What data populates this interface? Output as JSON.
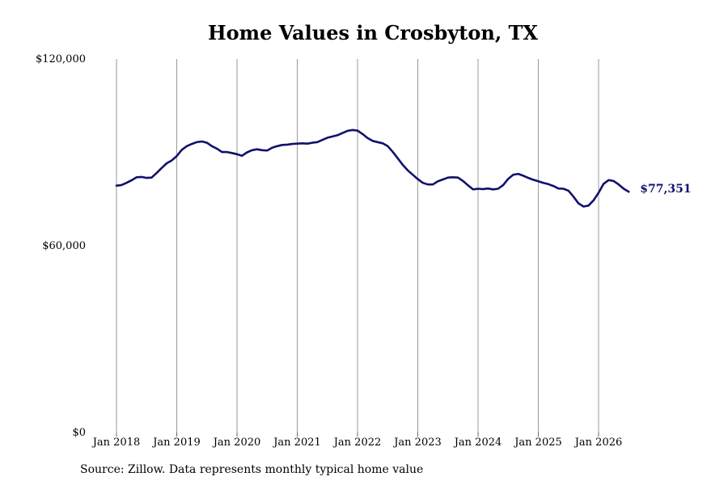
{
  "chart_data": {
    "type": "line",
    "title": "Home Values in Crosbyton, TX",
    "xlabel": "",
    "ylabel": "",
    "source": "Source: Zillow. Data represents monthly typical home value",
    "ylim": [
      0,
      120000
    ],
    "yticks": [
      {
        "value": 0,
        "label": "$0"
      },
      {
        "value": 60000,
        "label": "$60,000"
      },
      {
        "value": 120000,
        "label": "$120,000"
      }
    ],
    "xticks": [
      {
        "year": 2018,
        "label": "Jan 2018"
      },
      {
        "year": 2019,
        "label": "Jan 2019"
      },
      {
        "year": 2020,
        "label": "Jan 2020"
      },
      {
        "year": 2021,
        "label": "Jan 2021"
      },
      {
        "year": 2022,
        "label": "Jan 2022"
      },
      {
        "year": 2023,
        "label": "Jan 2023"
      },
      {
        "year": 2024,
        "label": "Jan 2024"
      },
      {
        "year": 2025,
        "label": "Jan 2025"
      },
      {
        "year": 2026,
        "label": "Jan 2026"
      }
    ],
    "grid": "vertical",
    "line_color": "#11116b",
    "end_label": "$77,351",
    "series": [
      {
        "x": [
          2018.0,
          2018.083,
          2018.167,
          2018.25,
          2018.333,
          2018.417,
          2018.5,
          2018.583,
          2018.667,
          2018.75,
          2018.833,
          2018.917,
          2019.0,
          2019.083,
          2019.167,
          2019.25,
          2019.333,
          2019.417,
          2019.5,
          2019.583,
          2019.667,
          2019.75,
          2019.833,
          2019.917,
          2020.0,
          2020.083,
          2020.167,
          2020.25,
          2020.333,
          2020.417,
          2020.5,
          2020.583,
          2020.667,
          2020.75,
          2020.833,
          2020.917,
          2021.0,
          2021.083,
          2021.167,
          2021.25,
          2021.333,
          2021.417,
          2021.5,
          2021.583,
          2021.667,
          2021.75,
          2021.833,
          2021.917,
          2022.0,
          2022.083,
          2022.167,
          2022.25,
          2022.333,
          2022.417,
          2022.5,
          2022.583,
          2022.667,
          2022.75,
          2022.833,
          2022.917,
          2023.0,
          2023.083,
          2023.167,
          2023.25,
          2023.333,
          2023.417,
          2023.5,
          2023.583,
          2023.667,
          2023.75,
          2023.833,
          2023.917,
          2024.0,
          2024.083,
          2024.167,
          2024.25,
          2024.333,
          2024.417,
          2024.5,
          2024.583,
          2024.667,
          2024.75,
          2024.833,
          2024.917,
          2025.0,
          2025.083,
          2025.167,
          2025.25,
          2025.333,
          2025.417,
          2025.5,
          2025.583,
          2025.667,
          2025.75,
          2025.833,
          2025.917,
          2026.0,
          2026.083,
          2026.167,
          2026.25,
          2026.333,
          2026.417,
          2026.5
        ],
        "values": [
          79300,
          79500,
          80200,
          81000,
          82000,
          82100,
          81800,
          81900,
          83400,
          85000,
          86500,
          87400,
          88800,
          90800,
          92000,
          92700,
          93300,
          93500,
          93100,
          92000,
          91200,
          90100,
          90100,
          89800,
          89400,
          88900,
          90000,
          90700,
          91000,
          90700,
          90600,
          91500,
          92000,
          92400,
          92500,
          92700,
          92800,
          92900,
          92800,
          93100,
          93300,
          94000,
          94700,
          95100,
          95500,
          96200,
          96900,
          97200,
          97000,
          95900,
          94600,
          93700,
          93300,
          92900,
          92000,
          90200,
          88100,
          86000,
          84200,
          82800,
          81400,
          80200,
          79700,
          79700,
          80700,
          81300,
          81900,
          82000,
          81900,
          80800,
          79400,
          78100,
          78300,
          78200,
          78400,
          78100,
          78300,
          79500,
          81500,
          82800,
          83100,
          82500,
          81800,
          81200,
          80700,
          80200,
          79800,
          79200,
          78400,
          78300,
          77700,
          75800,
          73600,
          72600,
          72900,
          74600,
          77000,
          79900,
          81100,
          80800,
          79700,
          78300,
          77351
        ]
      }
    ]
  }
}
